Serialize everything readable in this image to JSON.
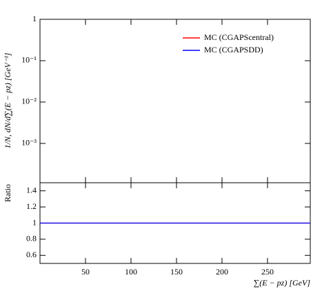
{
  "chart_data": [
    {
      "type": "line",
      "ylabel": "1/N, dN/d∑(E − pz) [GeV⁻¹]",
      "log_y": true,
      "x": [],
      "xlim": [
        0,
        297
      ],
      "xticks": [
        50,
        100,
        150,
        200,
        250
      ],
      "ylim": [
        0.000112,
        1
      ],
      "yticks": [
        {
          "value": 1,
          "label": "1"
        },
        {
          "value": 0.1,
          "label": "10⁻¹"
        },
        {
          "value": 0.01,
          "label": "10⁻²"
        },
        {
          "value": 0.001,
          "label": "10⁻³"
        }
      ],
      "legend": "upper right",
      "series": [
        {
          "name": "MC (CGAPScentral)",
          "color": "#ff0000",
          "values": []
        },
        {
          "name": "MC (CGAPSDD)",
          "color": "#0000ff",
          "values": []
        }
      ]
    },
    {
      "type": "line",
      "ylabel": "Ratio",
      "xlabel": "∑(E − pz) [GeV]",
      "x": [
        0,
        297
      ],
      "xlim": [
        0,
        297
      ],
      "xticks": [
        50,
        100,
        150,
        200,
        250
      ],
      "ylim": [
        0.5,
        1.5
      ],
      "yticks": [
        0.6,
        0.8,
        1,
        1.2,
        1.4
      ],
      "series": [
        {
          "color": "#ff0000",
          "values": [
            1,
            1
          ]
        },
        {
          "color": "#0000ff",
          "values": [
            1,
            1
          ]
        }
      ]
    }
  ]
}
